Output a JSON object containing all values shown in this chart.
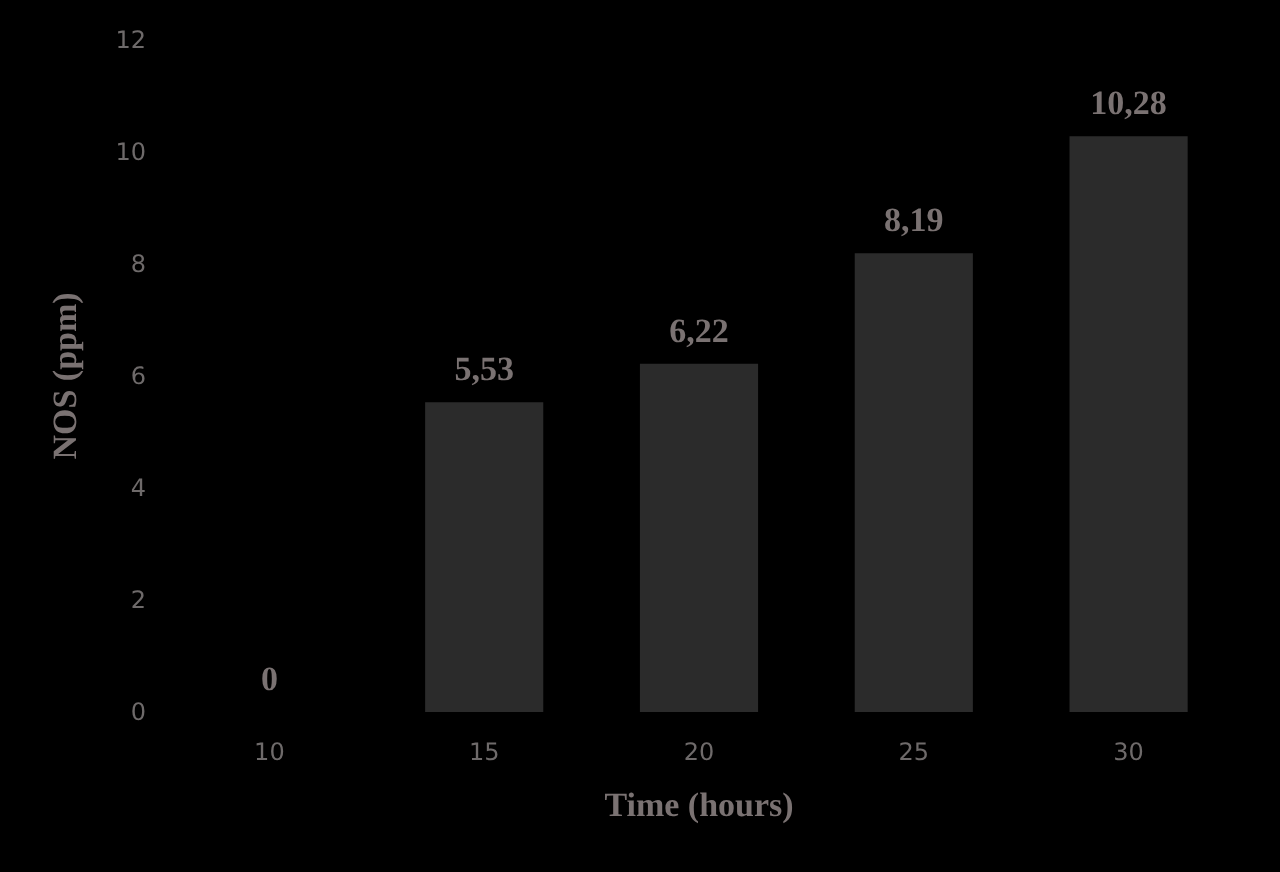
{
  "chart_data": {
    "type": "bar",
    "xlabel": "Time (hours)",
    "ylabel": "NOS (ppm)",
    "categories": [
      "10",
      "15",
      "20",
      "25",
      "30"
    ],
    "values": [
      0,
      5.53,
      6.22,
      8.19,
      10.28
    ],
    "value_labels": [
      "0",
      "5,53",
      "6,22",
      "8,19",
      "10,28"
    ],
    "color": "#2b2b2b",
    "ylim": [
      0,
      12
    ],
    "yticks": [
      0,
      2,
      4,
      6,
      8,
      10,
      12
    ],
    "grid": false
  }
}
